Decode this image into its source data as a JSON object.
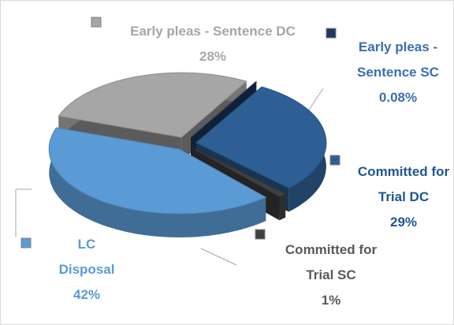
{
  "chart_data": {
    "type": "pie3d",
    "categories": [
      "Early pleas - Sentence DC",
      "Early pleas - Sentence SC",
      "Committed for Trial DC",
      "Committed for Trial SC",
      "LC Disposal"
    ],
    "values": [
      28,
      0.08,
      29,
      1,
      42
    ],
    "value_labels": [
      "28%",
      "0.08%",
      "29%",
      "1%",
      "42%"
    ],
    "colors": [
      "#a6a6a6",
      "#1f3864",
      "#2e5f94",
      "#404040",
      "#5b9bd5"
    ],
    "label_colors": [
      "#a6a6a6",
      "#3a6fb0",
      "#1f5592",
      "#595959",
      "#5b9bd5"
    ]
  }
}
